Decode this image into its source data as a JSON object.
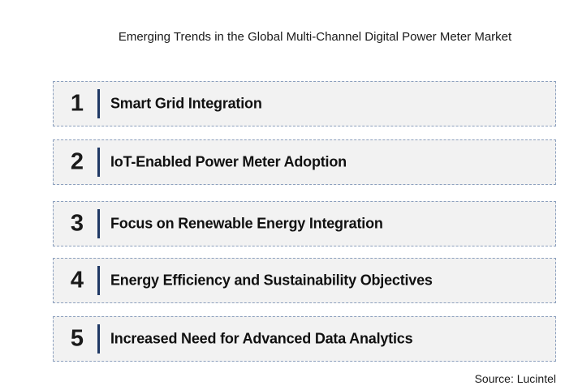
{
  "title": "Emerging Trends in the Global Multi-Channel Digital Power Meter Market",
  "trends": [
    {
      "number": "1",
      "label": "Smart Grid Integration"
    },
    {
      "number": "2",
      "label": "IoT-Enabled Power Meter Adoption"
    },
    {
      "number": "3",
      "label": "Focus on Renewable Energy Integration"
    },
    {
      "number": "4",
      "label": "Energy Efficiency and Sustainability Objectives"
    },
    {
      "number": "5",
      "label": "Increased Need for Advanced Data Analytics"
    }
  ],
  "source": "Source: Lucintel",
  "colors": {
    "box_fill": "#f2f2f2",
    "box_border": "#8b9fbd",
    "divider": "#1f3864"
  }
}
